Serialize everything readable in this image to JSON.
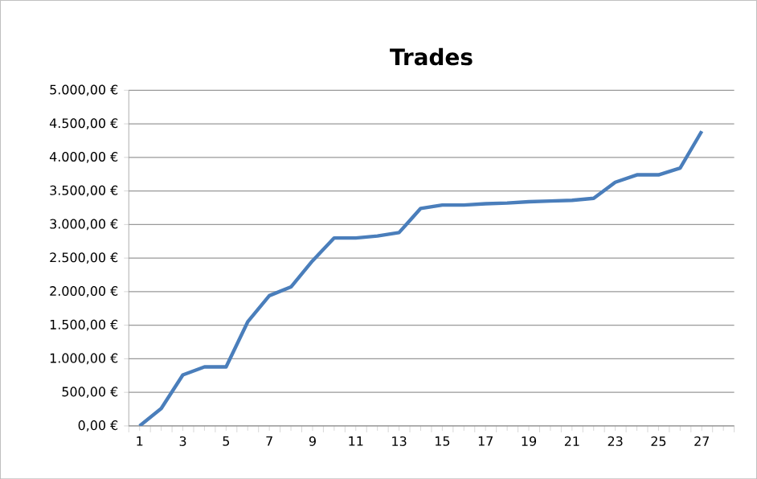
{
  "chart_data": {
    "type": "line",
    "title": "Trades",
    "categories": [
      "1",
      null,
      "3",
      null,
      "5",
      null,
      "7",
      null,
      "9",
      null,
      "11",
      null,
      "13",
      null,
      "15",
      null,
      "17",
      null,
      "19",
      null,
      "21",
      null,
      "23",
      null,
      "25",
      null,
      "27",
      null
    ],
    "series": [
      {
        "color": "#4a7ebb",
        "values": [
          0,
          260,
          760,
          880,
          880,
          1550,
          1940,
          2070,
          2460,
          2800,
          2800,
          2830,
          2880,
          3240,
          3290,
          3290,
          3310,
          3320,
          3340,
          3350,
          3360,
          3390,
          3630,
          3740,
          3740,
          3840,
          4390,
          null
        ]
      }
    ],
    "ylim": [
      0,
      5000
    ],
    "yticks": [
      {
        "value": 0,
        "label": "0,00 €"
      },
      {
        "value": 500,
        "label": "500,00 €"
      },
      {
        "value": 1000,
        "label": "1.000,00 €"
      },
      {
        "value": 1500,
        "label": "1.500,00 €"
      },
      {
        "value": 2000,
        "label": "2.000,00 €"
      },
      {
        "value": 2500,
        "label": "2.500,00 €"
      },
      {
        "value": 3000,
        "label": "3.000,00 €"
      },
      {
        "value": 3500,
        "label": "3.500,00 €"
      },
      {
        "value": 4000,
        "label": "4.000,00 €"
      },
      {
        "value": 4500,
        "label": "4.500,00 €"
      },
      {
        "value": 5000,
        "label": "5.000,00 €"
      }
    ],
    "grid": "y",
    "marker": "none",
    "line_style": "solid"
  }
}
